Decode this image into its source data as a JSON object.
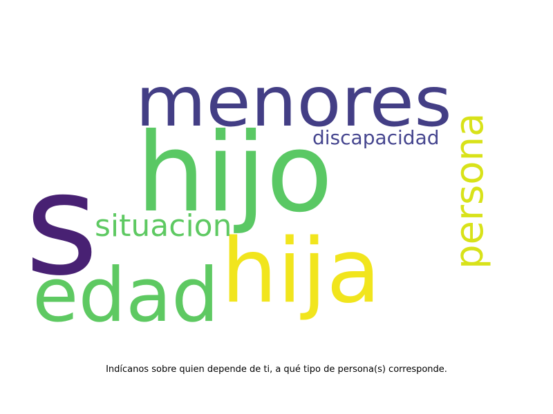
{
  "caption": "Indícanos sobre quien depende de ti, a qué tipo de persona(s) corresponde.",
  "words": {
    "s": {
      "text": "s",
      "color": "#482173"
    },
    "hijo": {
      "text": "hijo",
      "color": "#5ac864"
    },
    "menores": {
      "text": "menores",
      "color": "#433e85"
    },
    "hija": {
      "text": "hija",
      "color": "#f1e51d"
    },
    "edad": {
      "text": "edad",
      "color": "#5ec962"
    },
    "persona": {
      "text": "persona",
      "color": "#d8e219"
    },
    "situacion": {
      "text": "situacion",
      "color": "#5ec962"
    },
    "discapacidad": {
      "text": "discapacidad",
      "color": "#46468f"
    }
  }
}
